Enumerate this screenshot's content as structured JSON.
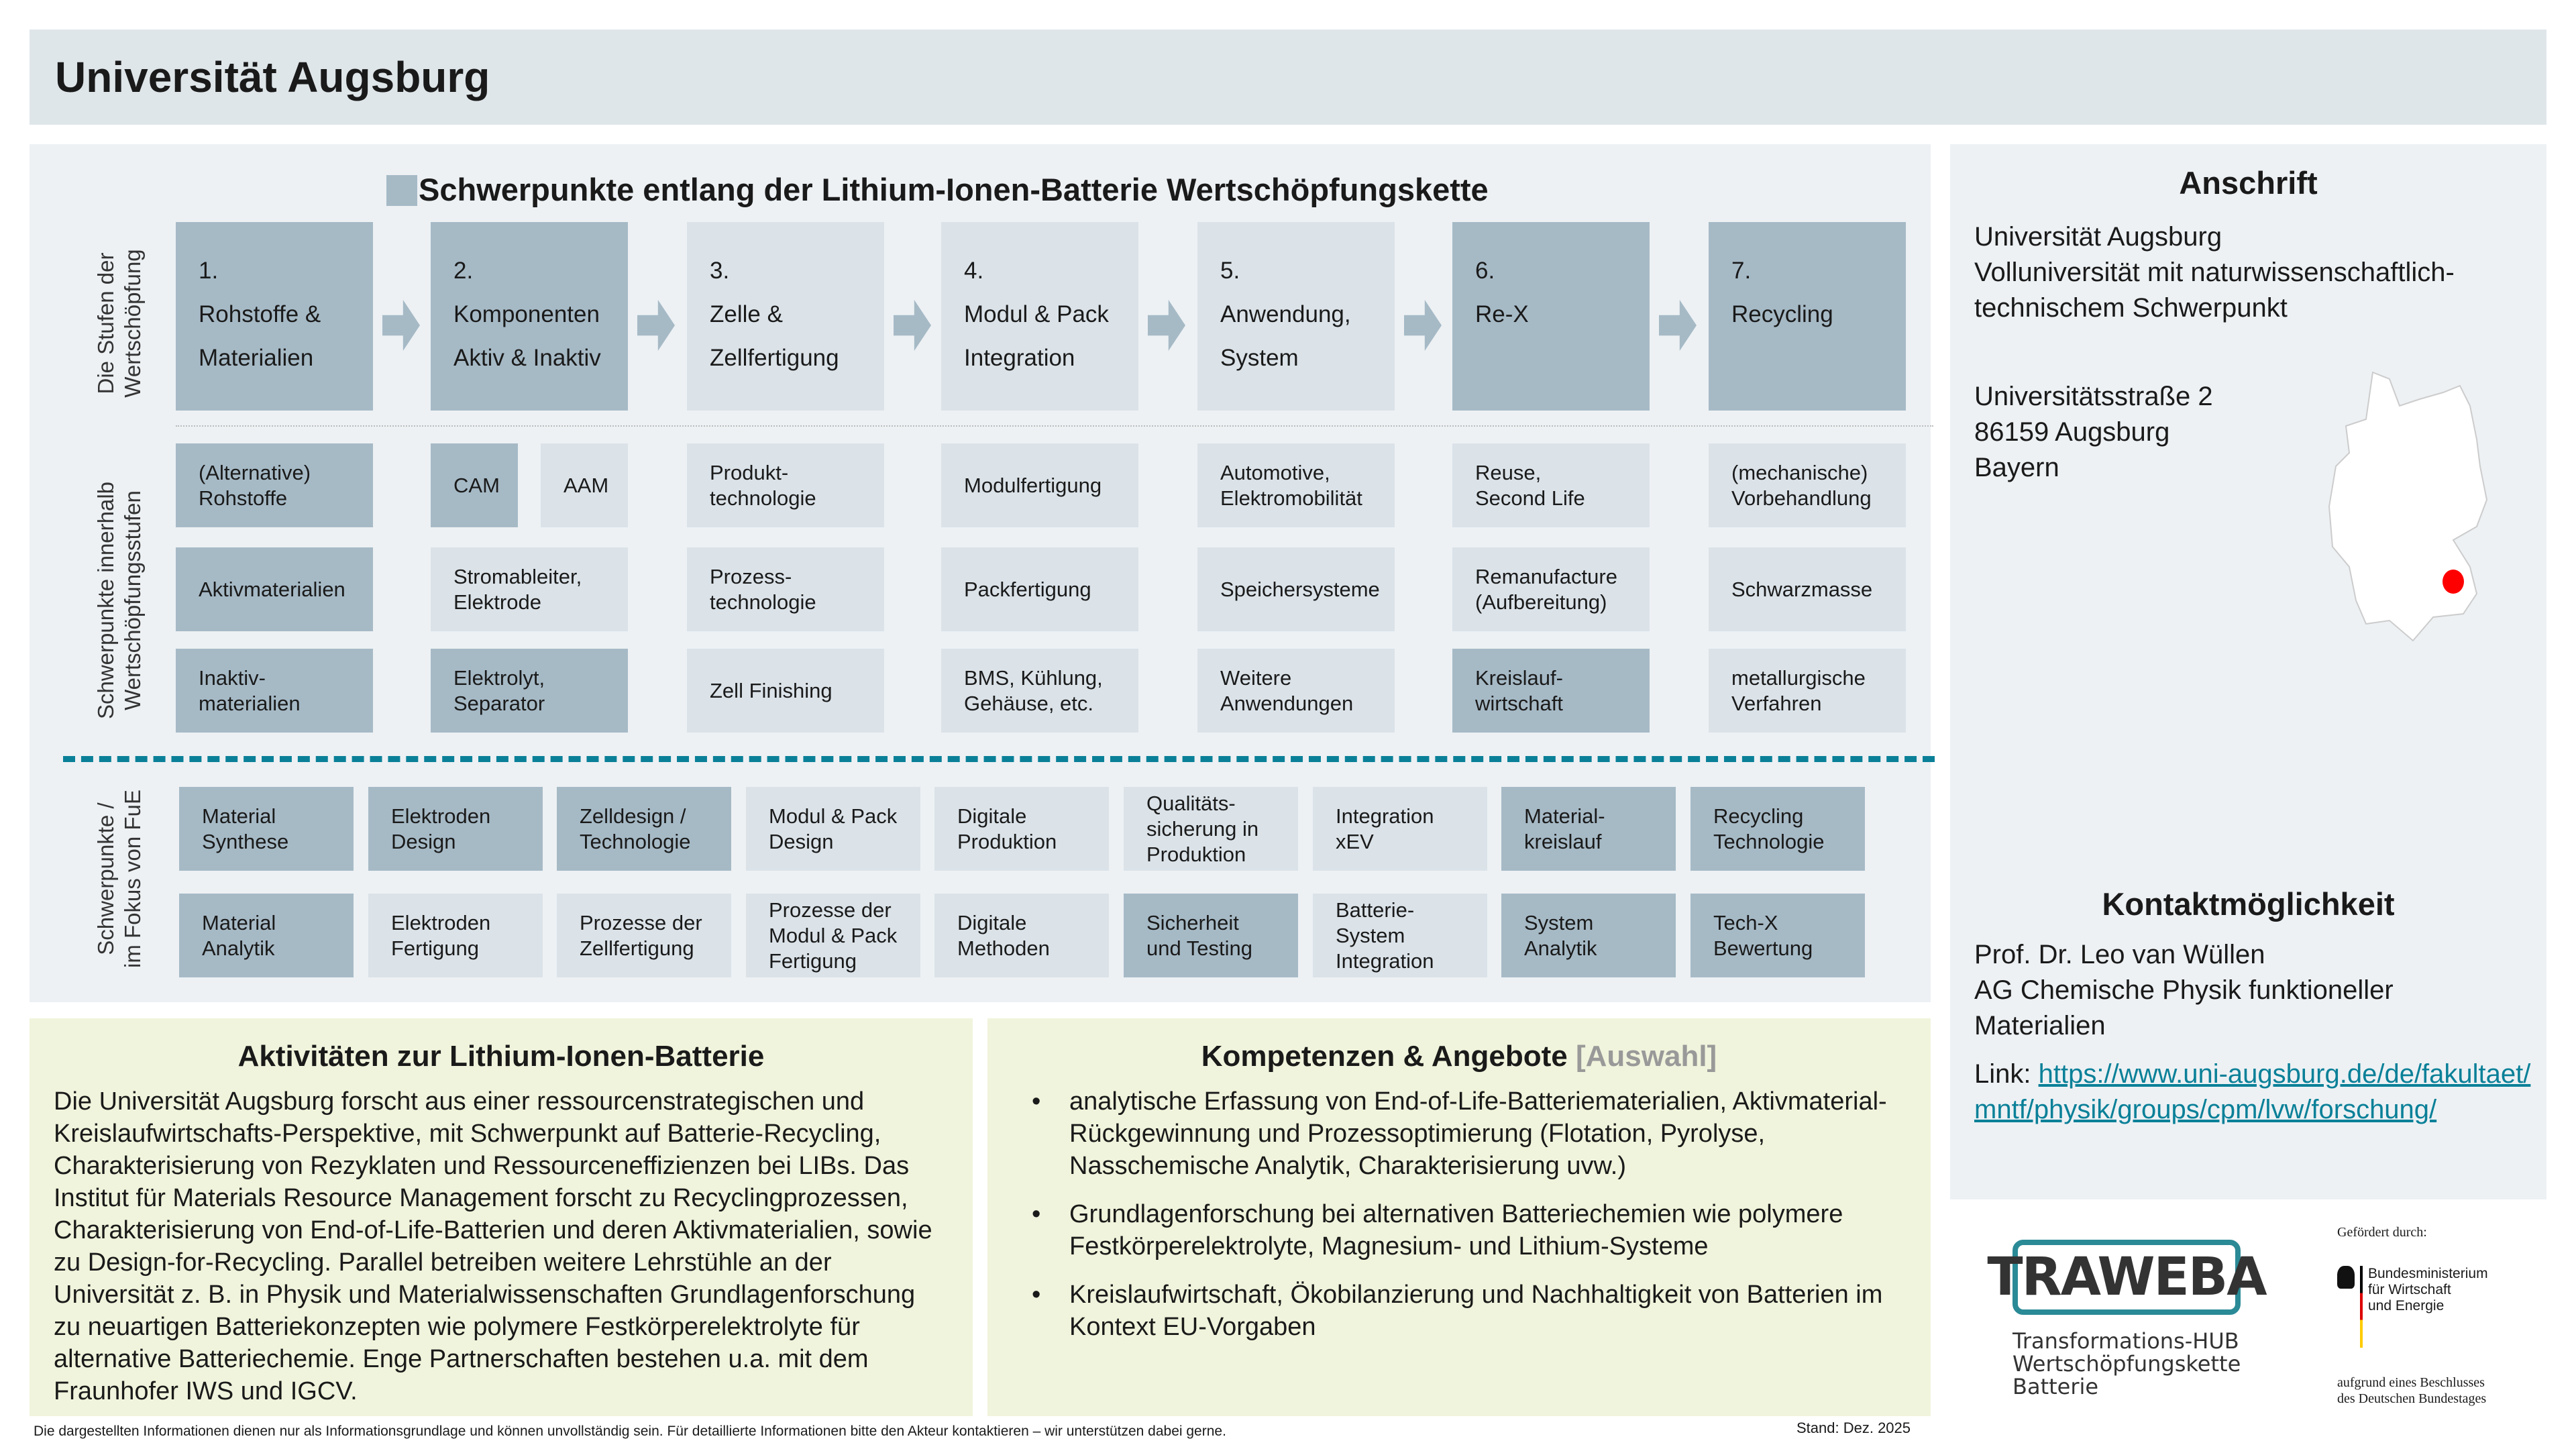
{
  "header": {
    "title": "Universität Augsburg"
  },
  "chain": {
    "title": "Schwerpunkte entlang der Lithium-Ionen-Batterie Wertschöpfungskette",
    "label_stages": "Die Stufen der\nWertschöpfung",
    "label_focus": "Schwerpunkte innerhalb\nWertschöpfungsstufen",
    "label_fue": "Schwerpunkte /\nim Fokus von FuE",
    "stages": [
      {
        "text": "1.\nRohstoffe &\nMaterialien",
        "highlighted": true
      },
      {
        "text": "2.\nKomponenten\nAktiv & Inaktiv",
        "highlighted": true
      },
      {
        "text": "3.\nZelle &\nZellfertigung",
        "highlighted": false
      },
      {
        "text": "4.\nModul & Pack\nIntegration",
        "highlighted": false
      },
      {
        "text": "5.\nAnwendung,\nSystem",
        "highlighted": false
      },
      {
        "text": "6.\nRe-X",
        "highlighted": true
      },
      {
        "text": "7.\nRecycling",
        "highlighted": true
      }
    ],
    "focus_rows": [
      [
        {
          "text": "(Alternative)\nRohstoffe",
          "highlighted": true
        },
        {
          "split": [
            {
              "text": "CAM",
              "highlighted": true
            },
            {
              "text": "AAM",
              "highlighted": false
            }
          ]
        },
        {
          "text": "Produkt-\ntechnologie",
          "highlighted": false
        },
        {
          "text": "Modulfertigung",
          "highlighted": false
        },
        {
          "text": "Automotive,\nElektromobilität",
          "highlighted": false
        },
        {
          "text": "Reuse,\nSecond Life",
          "highlighted": false
        },
        {
          "text": "(mechanische)\nVorbehandlung",
          "highlighted": false
        }
      ],
      [
        {
          "text": "Aktivmaterialien",
          "highlighted": true
        },
        {
          "text": "Stromableiter,\nElektrode",
          "highlighted": false
        },
        {
          "text": "Prozess-\ntechnologie",
          "highlighted": false
        },
        {
          "text": "Packfertigung",
          "highlighted": false
        },
        {
          "text": "Speichersysteme",
          "highlighted": false
        },
        {
          "text": "Remanufacture\n(Aufbereitung)",
          "highlighted": false
        },
        {
          "text": "Schwarzmasse",
          "highlighted": false
        }
      ],
      [
        {
          "text": "Inaktiv-\nmaterialien",
          "highlighted": true
        },
        {
          "text": "Elektrolyt,\nSeparator",
          "highlighted": true
        },
        {
          "text": "Zell Finishing",
          "highlighted": false
        },
        {
          "text": "BMS, Kühlung,\nGehäuse, etc.",
          "highlighted": false
        },
        {
          "text": "Weitere\nAnwendungen",
          "highlighted": false
        },
        {
          "text": "Kreislauf-\nwirtschaft",
          "highlighted": true
        },
        {
          "text": "metallurgische\nVerfahren",
          "highlighted": false
        }
      ]
    ],
    "fue_rows": [
      [
        {
          "text": "Material\nSynthese",
          "highlighted": true
        },
        {
          "text": "Elektroden\nDesign",
          "highlighted": true
        },
        {
          "text": "Zelldesign /\nTechnologie",
          "highlighted": true
        },
        {
          "text": "Modul & Pack\nDesign",
          "highlighted": false
        },
        {
          "text": "Digitale\nProduktion",
          "highlighted": false
        },
        {
          "text": "Qualitäts-\nsicherung in\nProduktion",
          "highlighted": false
        },
        {
          "text": "Integration\nxEV",
          "highlighted": false
        },
        {
          "text": "Material-\nkreislauf",
          "highlighted": true
        },
        {
          "text": "Recycling\nTechnologie",
          "highlighted": true
        }
      ],
      [
        {
          "text": "Material\nAnalytik",
          "highlighted": true
        },
        {
          "text": "Elektroden\nFertigung",
          "highlighted": false
        },
        {
          "text": "Prozesse der\nZellfertigung",
          "highlighted": false
        },
        {
          "text": "Prozesse der\nModul & Pack\nFertigung",
          "highlighted": false
        },
        {
          "text": "Digitale\nMethoden",
          "highlighted": false
        },
        {
          "text": "Sicherheit\nund Testing",
          "highlighted": true
        },
        {
          "text": "Batterie-\nSystem\nIntegration",
          "highlighted": false
        },
        {
          "text": "System\nAnalytik",
          "highlighted": true
        },
        {
          "text": "Tech-X\nBewertung",
          "highlighted": true
        }
      ]
    ]
  },
  "activities": {
    "title": "Aktivitäten zur Lithium-Ionen-Batterie",
    "text": "Die Universität Augsburg forscht aus einer ressourcenstrategischen und Kreislaufwirtschafts-Perspektive, mit Schwerpunkt auf Batterie-Recycling, Charakterisierung von Rezyklaten und Ressourceneffizienzen bei LIBs. Das Institut für Materials Resource Management forscht zu Recyclingprozessen, Charakterisierung von End-of-Life-Batterien und deren Aktivmaterialien, sowie zu Design-for-Recycling. Parallel betreiben weitere Lehrstühle an der Universität z. B. in Physik und Materialwissenschaften Grundlagenforschung zu neuartigen Batteriekonzepten wie polymere Festkörperelektrolyte für alternative Batteriechemie. Enge Partnerschaften bestehen u.a. mit dem Fraunhofer IWS und IGCV."
  },
  "competences": {
    "title": "Kompetenzen & Angebote",
    "title_suffix": "[Auswahl]",
    "items": [
      "analytische Erfassung von End-of-Life-Batteriematerialien, Aktivmaterial-Rückgewinnung und Prozessoptimierung (Flotation, Pyrolyse, Nasschemische Analytik, Charakterisierung uvw.)",
      "Grundlagenforschung bei alternativen Batteriechemien wie polymere Festkörperelektrolyte, Magnesium- und Lithium-Systeme",
      "Kreislaufwirtschaft, Ökobilanzierung und Nachhaltigkeit von Batterien im Kontext EU-Vorgaben"
    ]
  },
  "address": {
    "title": "Anschrift",
    "org": "Universität Augsburg\nVolluniversität mit naturwissenschaftlich-\ntechnischem Schwerpunkt",
    "street": "Universitätsstraße 2\n86159 Augsburg\nBayern"
  },
  "contact": {
    "title": "Kontaktmöglichkeit",
    "person": "Prof. Dr. Leo van Wüllen\nAG Chemische Physik funktioneller\nMaterialien",
    "link_label": "Link: ",
    "link": "https://www.uni-augsburg.de/de/fakultaet/mntf/physik/groups/cpm/lvw/forschung/"
  },
  "logos": {
    "traweba": "TRAWEBA",
    "traweba_sub": "Transformations-HUB\nWertschöpfungskette\nBatterie",
    "funded_by": "Gefördert durch:",
    "ministry": "Bundesministerium\nfür Wirtschaft\nund Energie",
    "resolution": "aufgrund eines Beschlusses\ndes Deutschen Bundestages"
  },
  "footer": {
    "disclaimer": "Die dargestellten Informationen dienen nur als Informationsgrundlage und können unvollständig sein. Für detaillierte Informationen bitte den Akteur kontaktieren – wir unterstützen dabei gerne.",
    "date": "Stand: Dez. 2025"
  },
  "colors": {
    "highlight": "#a6bac6",
    "light": "#dbe3e9",
    "accent": "#0a8098",
    "marker": "#ff0000"
  }
}
